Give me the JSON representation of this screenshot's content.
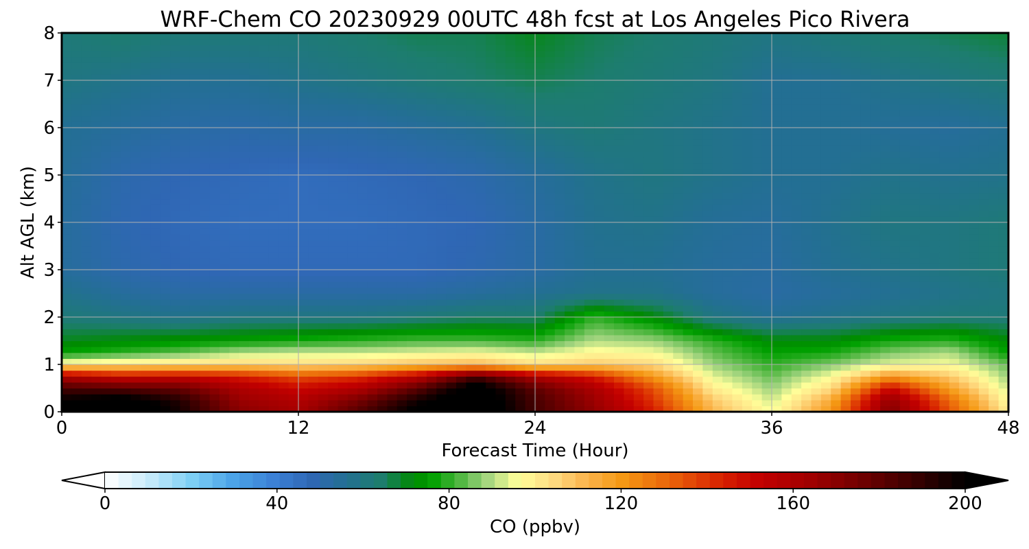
{
  "chart_data": {
    "type": "heatmap",
    "title": "WRF-Chem CO  20230929 00UTC 48h fcst at Los Angeles Pico Rivera",
    "xlabel": "Forecast Time (Hour)",
    "ylabel": "Alt AGL (km)",
    "xlim": [
      0,
      48
    ],
    "ylim": [
      0,
      8
    ],
    "xticks": [
      0,
      12,
      24,
      36,
      48
    ],
    "yticks": [
      0,
      1,
      2,
      3,
      4,
      5,
      6,
      7,
      8
    ],
    "grid": true,
    "x": [
      0,
      3,
      6,
      9,
      12,
      15,
      18,
      21,
      24,
      27,
      30,
      33,
      36,
      39,
      42,
      45,
      48
    ],
    "y": [
      0,
      0.25,
      0.5,
      0.75,
      1.0,
      1.25,
      1.5,
      2.0,
      2.5,
      3.0,
      4.0,
      5.0,
      6.0,
      7.0,
      8.0
    ],
    "values": [
      [
        205,
        212,
        196,
        170,
        162,
        182,
        203,
        213,
        186,
        168,
        145,
        112,
        96,
        120,
        172,
        135,
        100
      ],
      [
        200,
        206,
        193,
        166,
        158,
        174,
        196,
        211,
        185,
        165,
        140,
        108,
        92,
        115,
        168,
        130,
        96
      ],
      [
        185,
        182,
        178,
        160,
        150,
        158,
        180,
        208,
        180,
        160,
        135,
        100,
        88,
        104,
        150,
        118,
        92
      ],
      [
        160,
        150,
        152,
        145,
        135,
        140,
        155,
        185,
        160,
        145,
        120,
        94,
        84,
        96,
        120,
        108,
        88
      ],
      [
        100,
        102,
        104,
        106,
        104,
        106,
        110,
        112,
        104,
        108,
        105,
        88,
        80,
        86,
        94,
        96,
        84
      ],
      [
        76,
        80,
        84,
        90,
        92,
        92,
        94,
        96,
        92,
        98,
        96,
        84,
        76,
        78,
        86,
        90,
        76
      ],
      [
        70,
        72,
        74,
        76,
        78,
        80,
        82,
        82,
        80,
        90,
        88,
        80,
        72,
        72,
        78,
        80,
        72
      ],
      [
        62,
        60,
        58,
        60,
        60,
        60,
        62,
        64,
        64,
        80,
        72,
        60,
        56,
        58,
        60,
        62,
        62
      ],
      [
        58,
        54,
        52,
        52,
        52,
        52,
        52,
        54,
        56,
        58,
        58,
        54,
        52,
        54,
        56,
        58,
        60
      ],
      [
        54,
        50,
        48,
        47,
        47,
        47,
        47,
        49,
        52,
        56,
        56,
        54,
        53,
        56,
        58,
        60,
        62
      ],
      [
        54,
        49,
        47,
        46,
        46,
        46,
        47,
        48,
        52,
        57,
        58,
        55,
        54,
        57,
        60,
        60,
        62
      ],
      [
        55,
        50,
        48,
        47,
        46,
        47,
        48,
        50,
        54,
        58,
        60,
        58,
        56,
        56,
        58,
        57,
        58
      ],
      [
        56,
        54,
        52,
        51,
        52,
        52,
        54,
        56,
        60,
        62,
        60,
        58,
        56,
        56,
        55,
        54,
        56
      ],
      [
        60,
        58,
        56,
        56,
        58,
        60,
        62,
        64,
        66,
        64,
        62,
        60,
        56,
        56,
        58,
        60,
        62
      ],
      [
        62,
        64,
        62,
        62,
        62,
        64,
        66,
        66,
        70,
        66,
        64,
        62,
        60,
        62,
        64,
        66,
        68
      ]
    ],
    "colorbar": {
      "label": "CO  (ppbv)",
      "range": [
        0,
        200
      ],
      "ticks": [
        0,
        40,
        80,
        120,
        160,
        200
      ],
      "extend": "both",
      "colors": [
        {
          "v": 0,
          "c": "#ffffff"
        },
        {
          "v": 10,
          "c": "#c9ecfb"
        },
        {
          "v": 20,
          "c": "#7fd0f5"
        },
        {
          "v": 30,
          "c": "#4aa3e8"
        },
        {
          "v": 40,
          "c": "#3a7ed4"
        },
        {
          "v": 48,
          "c": "#2f67b4"
        },
        {
          "v": 56,
          "c": "#236f93"
        },
        {
          "v": 64,
          "c": "#1d7d6e"
        },
        {
          "v": 72,
          "c": "#008a00"
        },
        {
          "v": 76,
          "c": "#00a000"
        },
        {
          "v": 82,
          "c": "#48b43a"
        },
        {
          "v": 88,
          "c": "#9ad17b"
        },
        {
          "v": 96,
          "c": "#ffff9a"
        },
        {
          "v": 104,
          "c": "#fedd83"
        },
        {
          "v": 112,
          "c": "#fbb44c"
        },
        {
          "v": 120,
          "c": "#f59a14"
        },
        {
          "v": 132,
          "c": "#e96009"
        },
        {
          "v": 144,
          "c": "#d61e00"
        },
        {
          "v": 152,
          "c": "#c30000"
        },
        {
          "v": 164,
          "c": "#a00000"
        },
        {
          "v": 176,
          "c": "#700000"
        },
        {
          "v": 188,
          "c": "#3a0000"
        },
        {
          "v": 200,
          "c": "#000000"
        }
      ]
    }
  }
}
